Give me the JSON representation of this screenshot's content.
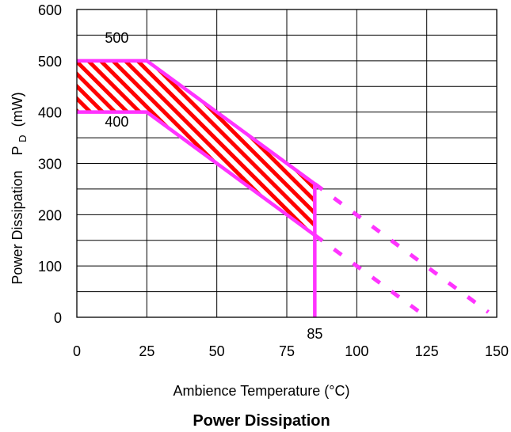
{
  "chart_data": {
    "type": "line",
    "title": "Power Dissipation",
    "xlabel": "Ambience Temperature (°C)",
    "ylabel_main": "Power Dissipation",
    "ylabel_symbol": "P",
    "ylabel_subscript": "D",
    "ylabel_unit": "(mW)",
    "xlim": [
      0,
      150
    ],
    "ylim": [
      0,
      600
    ],
    "x_ticks": [
      "0",
      "25",
      "50",
      "75",
      "100",
      "125",
      "150"
    ],
    "x_tick_values": [
      0,
      25,
      50,
      75,
      100,
      125,
      150
    ],
    "y_ticks": [
      "0",
      "100",
      "200",
      "300",
      "400",
      "500",
      "600"
    ],
    "y_tick_values": [
      0,
      100,
      200,
      300,
      400,
      500,
      600
    ],
    "grid": true,
    "grid_step_x": 25,
    "grid_step_y": 50,
    "series": [
      {
        "name": "500",
        "x": [
          0,
          25,
          85
        ],
        "y": [
          500,
          500,
          260
        ],
        "style": "solid",
        "color": "#ff33ff"
      },
      {
        "name": "400",
        "x": [
          0,
          25,
          85
        ],
        "y": [
          400,
          400,
          160
        ],
        "style": "solid",
        "color": "#ff33ff"
      },
      {
        "name": "",
        "x": [
          85,
          85
        ],
        "y": [
          260,
          0
        ],
        "style": "solid",
        "color": "#ff33ff"
      },
      {
        "name": "",
        "x": [
          85,
          147
        ],
        "y": [
          260,
          10
        ],
        "style": "dashed",
        "color": "#ff33ff"
      },
      {
        "name": "",
        "x": [
          85,
          125
        ],
        "y": [
          160,
          0
        ],
        "style": "dashed",
        "color": "#ff33ff"
      }
    ],
    "hatched_region": {
      "upper_x": [
        0,
        25,
        85
      ],
      "upper_y": [
        500,
        500,
        260
      ],
      "lower_x": [
        0,
        25,
        85
      ],
      "lower_y": [
        400,
        400,
        160
      ],
      "hatch_color": "#ff0000"
    },
    "annotations": [
      {
        "text": "500",
        "x": 10,
        "y": 535
      },
      {
        "text": "400",
        "x": 10,
        "y": 372
      },
      {
        "text": "85",
        "x": 85,
        "y": -42
      }
    ]
  }
}
